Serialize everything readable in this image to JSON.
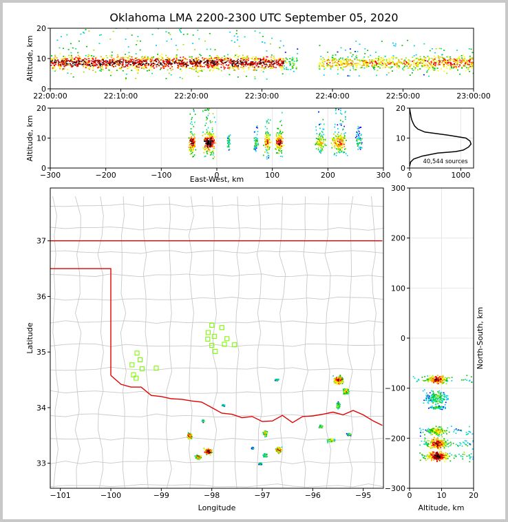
{
  "title": "Oklahoma LMA 2200-2300 UTC September 05, 2020",
  "colors": {
    "state_border": "#e00000",
    "county_line": "#c8c8c8",
    "station": "#7cfc00",
    "grid": "#e6e6e6"
  },
  "chart_data": [
    {
      "id": "time_height",
      "type": "heatmap",
      "ylabel": "Altitude, km",
      "xlabel": "",
      "ylim": [
        0,
        20
      ],
      "yticks": [
        "0",
        "10",
        "20"
      ],
      "xticks": [
        "22:00:00",
        "22:10:00",
        "22:20:00",
        "22:30:00",
        "22:40:00",
        "22:50:00",
        "23:00:00"
      ],
      "xlim_minutes": [
        0,
        60
      ],
      "activity_bands": [
        {
          "start_min": 0,
          "end_min": 33,
          "alt_low": 3,
          "alt_high": 20,
          "intensity": 0.85
        },
        {
          "start_min": 33,
          "end_min": 35,
          "alt_low": 5,
          "alt_high": 14,
          "intensity": 0.4
        },
        {
          "start_min": 38,
          "end_min": 53,
          "alt_low": 4,
          "alt_high": 16,
          "intensity": 0.6
        },
        {
          "start_min": 53,
          "end_min": 60,
          "alt_low": 4,
          "alt_high": 14,
          "intensity": 0.7
        }
      ]
    },
    {
      "id": "ew_height",
      "type": "heatmap",
      "xlabel": "East-West, km",
      "ylabel": "Altitude, km",
      "xlim": [
        -300,
        300
      ],
      "ylim": [
        0,
        20
      ],
      "xticks": [
        "−300",
        "−200",
        "−100",
        "0",
        "100",
        "200",
        "300"
      ],
      "yticks": [
        "0",
        "10",
        "20"
      ],
      "columns": [
        {
          "x_center": -45,
          "half_width": 8,
          "alt_low": 3,
          "alt_high": 20,
          "intensity": 0.9
        },
        {
          "x_center": -15,
          "half_width": 15,
          "alt_low": 3,
          "alt_high": 20,
          "intensity": 1.0
        },
        {
          "x_center": 20,
          "half_width": 4,
          "alt_low": 6,
          "alt_high": 11,
          "intensity": 0.3
        },
        {
          "x_center": 70,
          "half_width": 5,
          "alt_low": 5,
          "alt_high": 14,
          "intensity": 0.35
        },
        {
          "x_center": 90,
          "half_width": 8,
          "alt_low": 3,
          "alt_high": 17,
          "intensity": 0.75
        },
        {
          "x_center": 112,
          "half_width": 10,
          "alt_low": 3,
          "alt_high": 19,
          "intensity": 0.85
        },
        {
          "x_center": 185,
          "half_width": 12,
          "alt_low": 5,
          "alt_high": 20,
          "intensity": 0.55
        },
        {
          "x_center": 220,
          "half_width": 18,
          "alt_low": 4,
          "alt_high": 20,
          "intensity": 0.7
        },
        {
          "x_center": 255,
          "half_width": 8,
          "alt_low": 6,
          "alt_high": 14,
          "intensity": 0.3
        }
      ]
    },
    {
      "id": "alt_histogram",
      "type": "line",
      "annotation": "40,544 sources",
      "xlim": [
        0,
        1250
      ],
      "ylim": [
        0,
        20
      ],
      "xticks": [
        "0",
        "1000"
      ],
      "yticks": [
        "0",
        "10",
        "20"
      ],
      "profile": [
        {
          "alt": 0.5,
          "count": 0
        },
        {
          "alt": 2,
          "count": 20
        },
        {
          "alt": 3,
          "count": 80
        },
        {
          "alt": 4,
          "count": 250
        },
        {
          "alt": 5,
          "count": 550
        },
        {
          "alt": 5.5,
          "count": 900
        },
        {
          "alt": 6,
          "count": 1050
        },
        {
          "alt": 7,
          "count": 1150
        },
        {
          "alt": 8,
          "count": 1200
        },
        {
          "alt": 9,
          "count": 1180
        },
        {
          "alt": 10,
          "count": 1100
        },
        {
          "alt": 11,
          "count": 750
        },
        {
          "alt": 12,
          "count": 300
        },
        {
          "alt": 13,
          "count": 160
        },
        {
          "alt": 14,
          "count": 100
        },
        {
          "alt": 15,
          "count": 70
        },
        {
          "alt": 16,
          "count": 45
        },
        {
          "alt": 17,
          "count": 30
        },
        {
          "alt": 18,
          "count": 20
        },
        {
          "alt": 19,
          "count": 10
        },
        {
          "alt": 20,
          "count": 2
        }
      ]
    },
    {
      "id": "plan_map",
      "type": "scatter",
      "xlabel": "Longitude",
      "ylabel": "Latitude",
      "xlim": [
        -101.2,
        -94.6
      ],
      "ylim": [
        32.55,
        37.95
      ],
      "xticks": [
        "−101",
        "−100",
        "−99",
        "−98",
        "−97",
        "−96",
        "−95"
      ],
      "yticks": [
        "33",
        "34",
        "35",
        "36",
        "37"
      ],
      "stations": [
        {
          "lon": -99.48,
          "lat": 34.98
        },
        {
          "lon": -99.42,
          "lat": 34.86
        },
        {
          "lon": -99.58,
          "lat": 34.77
        },
        {
          "lon": -99.38,
          "lat": 34.7
        },
        {
          "lon": -99.55,
          "lat": 34.59
        },
        {
          "lon": -99.5,
          "lat": 34.53
        },
        {
          "lon": -99.1,
          "lat": 34.71
        },
        {
          "lon": -98.0,
          "lat": 35.48
        },
        {
          "lon": -97.8,
          "lat": 35.44
        },
        {
          "lon": -98.07,
          "lat": 35.35
        },
        {
          "lon": -97.95,
          "lat": 35.28
        },
        {
          "lon": -98.08,
          "lat": 35.23
        },
        {
          "lon": -97.7,
          "lat": 35.24
        },
        {
          "lon": -98.0,
          "lat": 35.12
        },
        {
          "lon": -97.75,
          "lat": 35.14
        },
        {
          "lon": -97.55,
          "lat": 35.13
        },
        {
          "lon": -97.93,
          "lat": 35.01
        }
      ],
      "clusters": [
        {
          "lon": -98.45,
          "lat": 33.5,
          "spread_lon": 0.06,
          "spread_lat": 0.08,
          "intensity": 0.8
        },
        {
          "lon": -98.08,
          "lat": 33.22,
          "spread_lon": 0.1,
          "spread_lat": 0.07,
          "intensity": 1.0
        },
        {
          "lon": -98.28,
          "lat": 33.12,
          "spread_lon": 0.08,
          "spread_lat": 0.05,
          "intensity": 0.7
        },
        {
          "lon": -98.18,
          "lat": 33.77,
          "spread_lon": 0.03,
          "spread_lat": 0.03,
          "intensity": 0.4
        },
        {
          "lon": -97.78,
          "lat": 34.05,
          "spread_lon": 0.03,
          "spread_lat": 0.02,
          "intensity": 0.3
        },
        {
          "lon": -96.95,
          "lat": 33.55,
          "spread_lon": 0.05,
          "spread_lat": 0.08,
          "intensity": 0.6
        },
        {
          "lon": -96.68,
          "lat": 33.25,
          "spread_lon": 0.08,
          "spread_lat": 0.07,
          "intensity": 0.8
        },
        {
          "lon": -96.95,
          "lat": 33.15,
          "spread_lon": 0.05,
          "spread_lat": 0.04,
          "intensity": 0.5
        },
        {
          "lon": -96.72,
          "lat": 34.51,
          "spread_lon": 0.05,
          "spread_lat": 0.02,
          "intensity": 0.4
        },
        {
          "lon": -95.85,
          "lat": 33.67,
          "spread_lon": 0.05,
          "spread_lat": 0.03,
          "intensity": 0.5
        },
        {
          "lon": -95.65,
          "lat": 33.42,
          "spread_lon": 0.1,
          "spread_lat": 0.04,
          "intensity": 0.6
        },
        {
          "lon": -95.5,
          "lat": 34.5,
          "spread_lon": 0.12,
          "spread_lat": 0.1,
          "intensity": 0.85
        },
        {
          "lon": -95.35,
          "lat": 34.3,
          "spread_lon": 0.08,
          "spread_lat": 0.08,
          "intensity": 0.6
        },
        {
          "lon": -95.5,
          "lat": 34.05,
          "spread_lon": 0.05,
          "spread_lat": 0.08,
          "intensity": 0.5
        },
        {
          "lon": -95.3,
          "lat": 33.53,
          "spread_lon": 0.05,
          "spread_lat": 0.03,
          "intensity": 0.4
        },
        {
          "lon": -97.2,
          "lat": 33.28,
          "spread_lon": 0.03,
          "spread_lat": 0.02,
          "intensity": 0.3
        },
        {
          "lon": -97.05,
          "lat": 33.0,
          "spread_lon": 0.04,
          "spread_lat": 0.02,
          "intensity": 0.3
        }
      ]
    },
    {
      "id": "ns_altitude",
      "type": "heatmap",
      "xlabel": "Altitude, km",
      "ylabel": "North-South, km",
      "xlim": [
        0,
        20
      ],
      "ylim": [
        -300,
        300
      ],
      "xticks": [
        "0",
        "10",
        "20"
      ],
      "yticks": [
        "−300",
        "−200",
        "−100",
        "0",
        "100",
        "200",
        "300"
      ],
      "rows": [
        {
          "y_center": -82,
          "half_height": 10,
          "alt_low": 1,
          "alt_high": 20,
          "intensity": 0.85
        },
        {
          "y_center": -118,
          "half_height": 18,
          "alt_low": 4,
          "alt_high": 12,
          "intensity": 0.35
        },
        {
          "y_center": -138,
          "half_height": 5,
          "alt_low": 5,
          "alt_high": 11,
          "intensity": 0.3
        },
        {
          "y_center": -185,
          "half_height": 12,
          "alt_low": 3,
          "alt_high": 20,
          "intensity": 0.55
        },
        {
          "y_center": -210,
          "half_height": 15,
          "alt_low": 3,
          "alt_high": 20,
          "intensity": 0.8
        },
        {
          "y_center": -235,
          "half_height": 12,
          "alt_low": 3,
          "alt_high": 20,
          "intensity": 1.0
        }
      ]
    }
  ]
}
